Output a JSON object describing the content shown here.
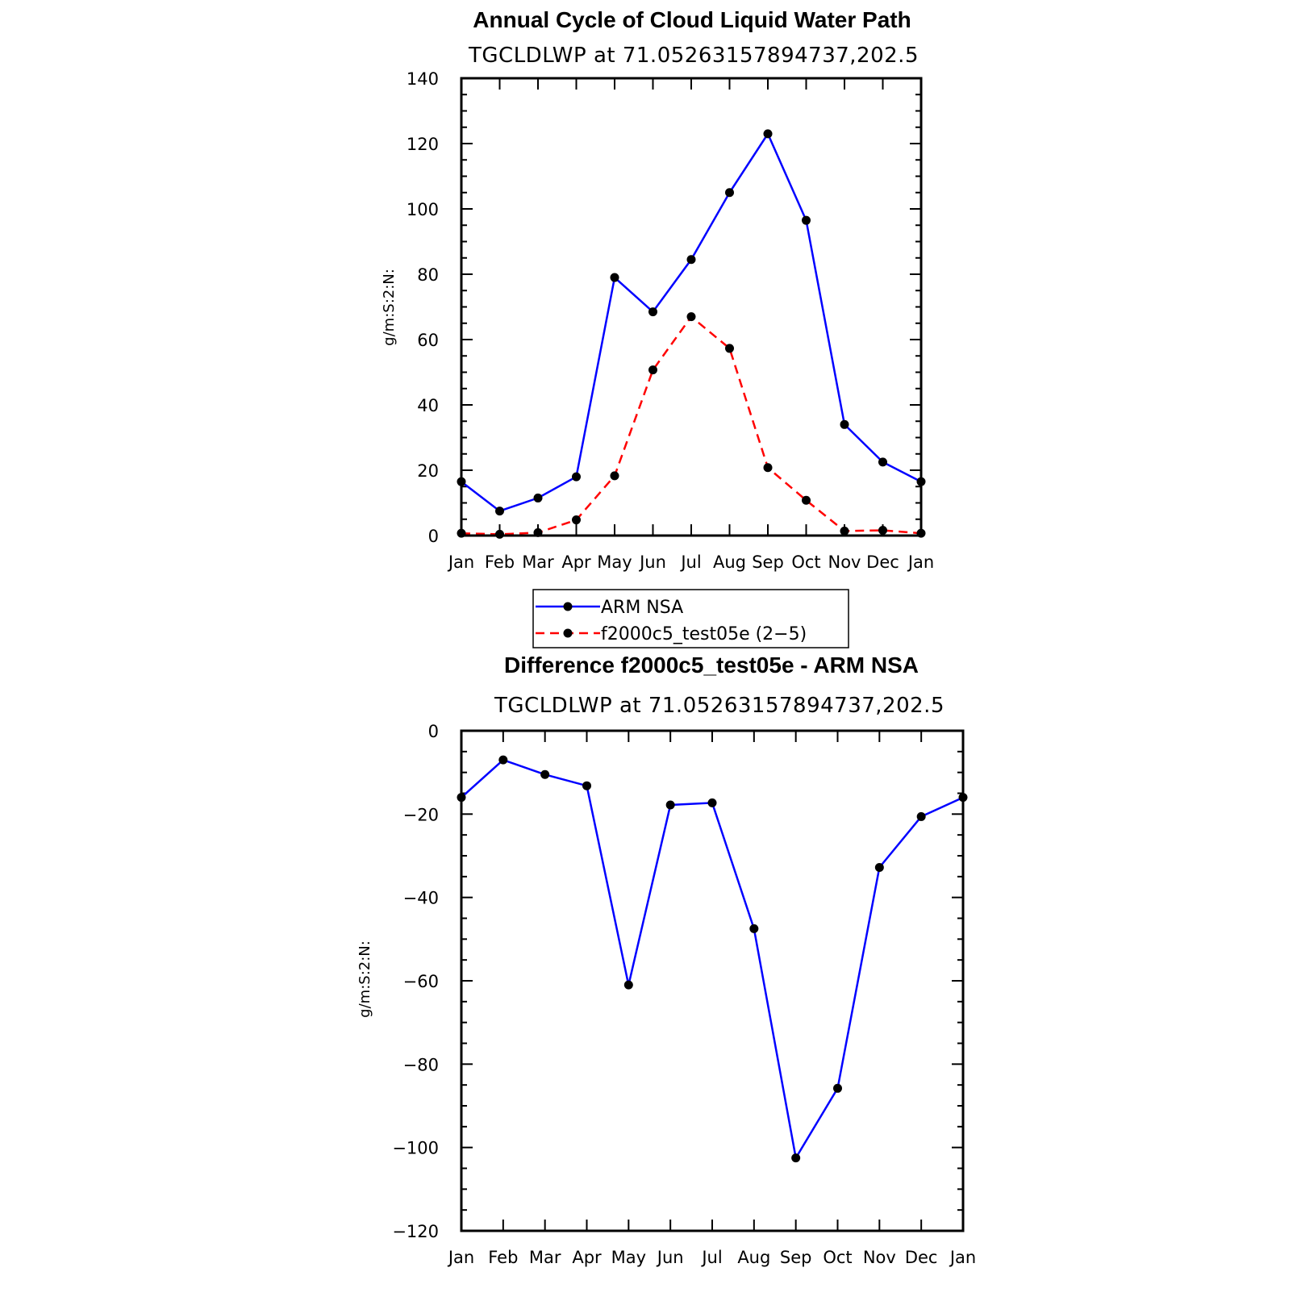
{
  "chart_data": [
    {
      "type": "line",
      "title": "Annual Cycle of Cloud Liquid Water Path",
      "subtitle": "TGCLDLWP at 71.05263157894737,202.5",
      "ylabel": "g/m:S:2:N:",
      "xlabel": "",
      "categories": [
        "Jan",
        "Feb",
        "Mar",
        "Apr",
        "May",
        "Jun",
        "Jul",
        "Aug",
        "Sep",
        "Oct",
        "Nov",
        "Dec",
        "Jan"
      ],
      "ylim": [
        0,
        140
      ],
      "yticks": [
        "0",
        "20",
        "40",
        "60",
        "80",
        "100",
        "120",
        "140"
      ],
      "series": [
        {
          "name": "ARM NSA",
          "color": "#0000ff",
          "dash": "solid",
          "values": [
            16.5,
            7.5,
            11.5,
            18,
            79,
            68.5,
            84.5,
            105,
            123,
            96.5,
            34,
            22.5,
            16.5
          ]
        },
        {
          "name": "f2000c5_test05e (2−5)",
          "color": "#ff0000",
          "dash": "dashed",
          "values": [
            0.7,
            0.4,
            0.9,
            4.8,
            18.3,
            50.7,
            67,
            57.3,
            20.8,
            10.8,
            1.4,
            1.6,
            0.7
          ]
        }
      ],
      "legend": {
        "placement": "below"
      }
    },
    {
      "type": "line",
      "title": "Difference f2000c5_test05e - ARM NSA",
      "subtitle": "TGCLDLWP at 71.05263157894737,202.5",
      "ylabel": "g/m:S:2:N:",
      "xlabel": "",
      "categories": [
        "Jan",
        "Feb",
        "Mar",
        "Apr",
        "May",
        "Jun",
        "Jul",
        "Aug",
        "Sep",
        "Oct",
        "Nov",
        "Dec",
        "Jan"
      ],
      "ylim": [
        -120,
        0
      ],
      "yticks": [
        "0",
        "−20",
        "−40",
        "−60",
        "−80",
        "−100",
        "−120"
      ],
      "series": [
        {
          "color": "#0000ff",
          "dash": "solid",
          "values": [
            -16,
            -7,
            -10.5,
            -13.2,
            -61,
            -17.8,
            -17.3,
            -47.5,
            -102.5,
            -85.8,
            -32.8,
            -20.6,
            -16
          ]
        }
      ]
    }
  ]
}
